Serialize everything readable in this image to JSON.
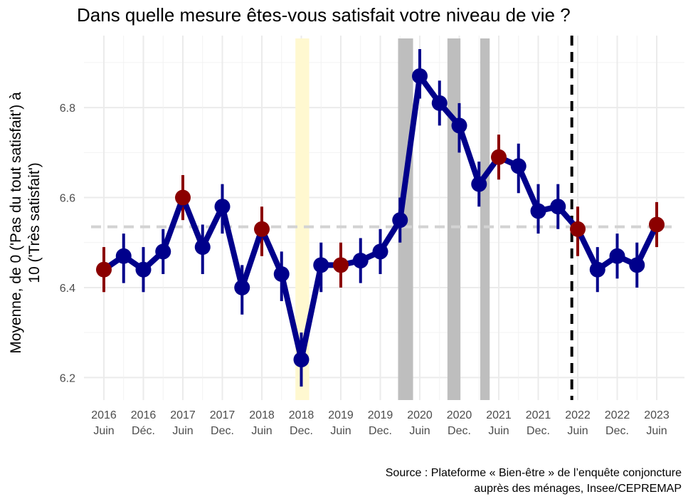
{
  "chart_data": {
    "type": "line",
    "title": "Dans quelle mesure êtes-vous satisfait votre niveau de vie ?",
    "ylabel_lines": [
      "Moyenne, de 0 ('Pas du tout satisfait') à",
      "10 ('Très satisfait')"
    ],
    "ylim": [
      6.15,
      6.96
    ],
    "y_ticks": [
      "6.2",
      "6.4",
      "6.6",
      "6.8"
    ],
    "x_tick_labels": [
      {
        "year": "2016",
        "period": "Juin"
      },
      {
        "year": "2016",
        "period": "Déc."
      },
      {
        "year": "2017",
        "period": "Juin"
      },
      {
        "year": "2017",
        "period": "Dec."
      },
      {
        "year": "2018",
        "period": "Juin"
      },
      {
        "year": "2018",
        "period": "Dec."
      },
      {
        "year": "2019",
        "period": "Juin"
      },
      {
        "year": "2019",
        "period": "Dec."
      },
      {
        "year": "2020",
        "period": "Juin"
      },
      {
        "year": "2020",
        "period": "Dec."
      },
      {
        "year": "2021",
        "period": "Juin"
      },
      {
        "year": "2021",
        "period": "Dec."
      },
      {
        "year": "2022",
        "period": "Juin"
      },
      {
        "year": "2022",
        "period": "Dec."
      },
      {
        "year": "2023",
        "period": "Juin"
      }
    ],
    "series": [
      {
        "x": [
          0,
          0.5,
          1,
          1.5,
          2,
          2.5,
          3,
          3.5,
          4,
          4.5,
          5,
          5.5,
          6,
          6.5,
          7,
          7.5,
          8,
          8.5,
          9,
          9.5,
          10,
          10.5,
          11,
          11.5,
          12,
          12.5,
          13,
          13.5,
          14
        ],
        "values": [
          6.44,
          6.47,
          6.44,
          6.48,
          6.6,
          6.49,
          6.58,
          6.4,
          6.53,
          6.43,
          6.24,
          6.45,
          6.45,
          6.46,
          6.48,
          6.55,
          6.87,
          6.81,
          6.76,
          6.63,
          6.69,
          6.67,
          6.57,
          6.58,
          6.53,
          6.44,
          6.47,
          6.45,
          6.54
        ],
        "error_low": [
          6.39,
          6.41,
          6.39,
          6.43,
          6.55,
          6.43,
          6.52,
          6.34,
          6.47,
          6.37,
          6.18,
          6.39,
          6.4,
          6.41,
          6.43,
          6.5,
          6.82,
          6.76,
          6.7,
          6.58,
          6.64,
          6.61,
          6.52,
          6.53,
          6.47,
          6.39,
          6.42,
          6.4,
          6.49
        ],
        "error_high": [
          6.49,
          6.52,
          6.49,
          6.53,
          6.65,
          6.54,
          6.63,
          6.45,
          6.58,
          6.48,
          6.3,
          6.5,
          6.5,
          6.51,
          6.53,
          6.6,
          6.93,
          6.86,
          6.81,
          6.68,
          6.74,
          6.72,
          6.63,
          6.63,
          6.58,
          6.49,
          6.52,
          6.5,
          6.59
        ],
        "highlight_indices": [
          0,
          4,
          8,
          12,
          20,
          24,
          28
        ],
        "line_color": "#00008B",
        "highlight_color": "#8B0000"
      }
    ],
    "reference_line": {
      "y": 6.535,
      "style": "dashed",
      "color": "#D3D3D3"
    },
    "vertical_event_line": {
      "x": 11.85,
      "style": "dashed",
      "color": "#000000"
    },
    "shaded_regions": [
      {
        "x_start": 4.85,
        "x_end": 5.2,
        "color": "#FFF8D0"
      },
      {
        "x_start": 7.45,
        "x_end": 7.83,
        "color": "#BEBEBE"
      },
      {
        "x_start": 8.7,
        "x_end": 9.03,
        "color": "#BEBEBE"
      },
      {
        "x_start": 9.53,
        "x_end": 9.77,
        "color": "#BEBEBE"
      }
    ],
    "grid": true
  },
  "source": {
    "line1": "Source : Plateforme « Bien-être » de l’enquête conjoncture",
    "line2": "auprès des ménages, Insee/CEPREMAP"
  }
}
